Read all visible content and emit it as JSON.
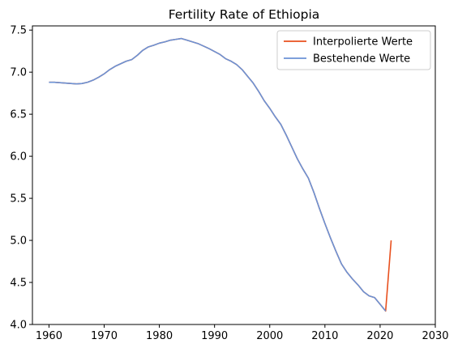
{
  "chart_data": {
    "type": "line",
    "title": "Fertility Rate of Ethiopia",
    "xlabel": "",
    "ylabel": "",
    "xlim": [
      1957,
      2030
    ],
    "ylim": [
      4.0,
      7.55
    ],
    "xticks": [
      1960,
      1970,
      1980,
      1990,
      2000,
      2010,
      2020,
      2030
    ],
    "yticks": [
      4.0,
      4.5,
      5.0,
      5.5,
      6.0,
      6.5,
      7.0,
      7.5
    ],
    "grid": false,
    "legend_position": "top-right",
    "series": [
      {
        "name": "Interpolierte Werte",
        "color": "#e8501e",
        "x": [
          1960,
          1961,
          1962,
          1963,
          1964,
          1965,
          1966,
          1967,
          1968,
          1969,
          1970,
          1971,
          1972,
          1973,
          1974,
          1975,
          1976,
          1977,
          1978,
          1979,
          1980,
          1981,
          1982,
          1983,
          1984,
          1985,
          1986,
          1987,
          1988,
          1989,
          1990,
          1991,
          1992,
          1993,
          1994,
          1995,
          1996,
          1997,
          1998,
          1999,
          2000,
          2001,
          2002,
          2003,
          2004,
          2005,
          2006,
          2007,
          2008,
          2009,
          2010,
          2011,
          2012,
          2013,
          2014,
          2015,
          2016,
          2017,
          2018,
          2019,
          2020,
          2021,
          2022
        ],
        "values": [
          6.88,
          6.88,
          6.875,
          6.87,
          6.865,
          6.86,
          6.865,
          6.88,
          6.905,
          6.94,
          6.98,
          7.03,
          7.07,
          7.1,
          7.13,
          7.15,
          7.2,
          7.26,
          7.3,
          7.32,
          7.345,
          7.36,
          7.38,
          7.39,
          7.4,
          7.38,
          7.36,
          7.34,
          7.31,
          7.28,
          7.245,
          7.21,
          7.16,
          7.13,
          7.09,
          7.03,
          6.95,
          6.87,
          6.77,
          6.66,
          6.57,
          6.47,
          6.38,
          6.25,
          6.11,
          5.97,
          5.85,
          5.74,
          5.57,
          5.38,
          5.2,
          5.03,
          4.87,
          4.72,
          4.62,
          4.54,
          4.47,
          4.39,
          4.34,
          4.32,
          4.24,
          4.16,
          5.0
        ]
      },
      {
        "name": "Bestehende Werte",
        "color": "#6b93d6",
        "x": [
          1960,
          1961,
          1962,
          1963,
          1964,
          1965,
          1966,
          1967,
          1968,
          1969,
          1970,
          1971,
          1972,
          1973,
          1974,
          1975,
          1976,
          1977,
          1978,
          1979,
          1980,
          1981,
          1982,
          1983,
          1984,
          1985,
          1986,
          1987,
          1988,
          1989,
          1990,
          1991,
          1992,
          1993,
          1994,
          1995,
          1996,
          1997,
          1998,
          1999,
          2000,
          2001,
          2002,
          2003,
          2004,
          2005,
          2006,
          2007,
          2008,
          2009,
          2010,
          2011,
          2012,
          2013,
          2014,
          2015,
          2016,
          2017,
          2018,
          2019,
          2020,
          2021
        ],
        "values": [
          6.88,
          6.88,
          6.875,
          6.87,
          6.865,
          6.86,
          6.865,
          6.88,
          6.905,
          6.94,
          6.98,
          7.03,
          7.07,
          7.1,
          7.13,
          7.15,
          7.2,
          7.26,
          7.3,
          7.32,
          7.345,
          7.36,
          7.38,
          7.39,
          7.4,
          7.38,
          7.36,
          7.34,
          7.31,
          7.28,
          7.245,
          7.21,
          7.16,
          7.13,
          7.09,
          7.03,
          6.95,
          6.87,
          6.77,
          6.66,
          6.57,
          6.47,
          6.38,
          6.25,
          6.11,
          5.97,
          5.85,
          5.74,
          5.57,
          5.38,
          5.2,
          5.03,
          4.87,
          4.72,
          4.62,
          4.54,
          4.47,
          4.39,
          4.34,
          4.32,
          4.24,
          4.16
        ]
      }
    ]
  }
}
